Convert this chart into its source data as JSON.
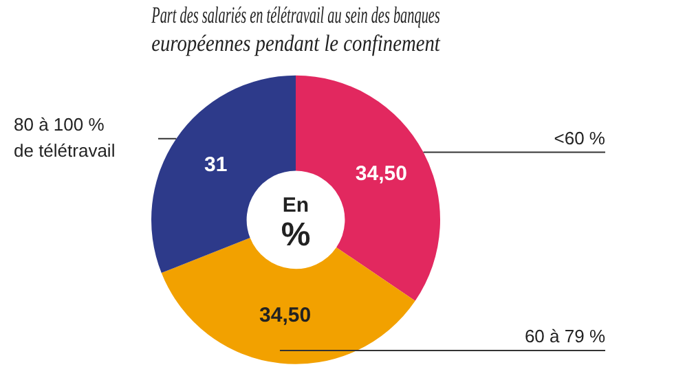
{
  "chart_data": {
    "type": "donut",
    "title": "Part des salariés en télétravail au sein des banques européennes pendant le confinement",
    "categories": [
      "<60 %",
      "60 à 79 %",
      "80 à 100 %\nde télétravail"
    ],
    "values": [
      34.5,
      34.5,
      31
    ],
    "colors": [
      "#e2285f",
      "#f2a100",
      "#2d3a8a"
    ],
    "value_labels": [
      "34,50",
      "34,50",
      "31"
    ],
    "annotations": [
      "En\n%"
    ],
    "legend": false
  }
}
